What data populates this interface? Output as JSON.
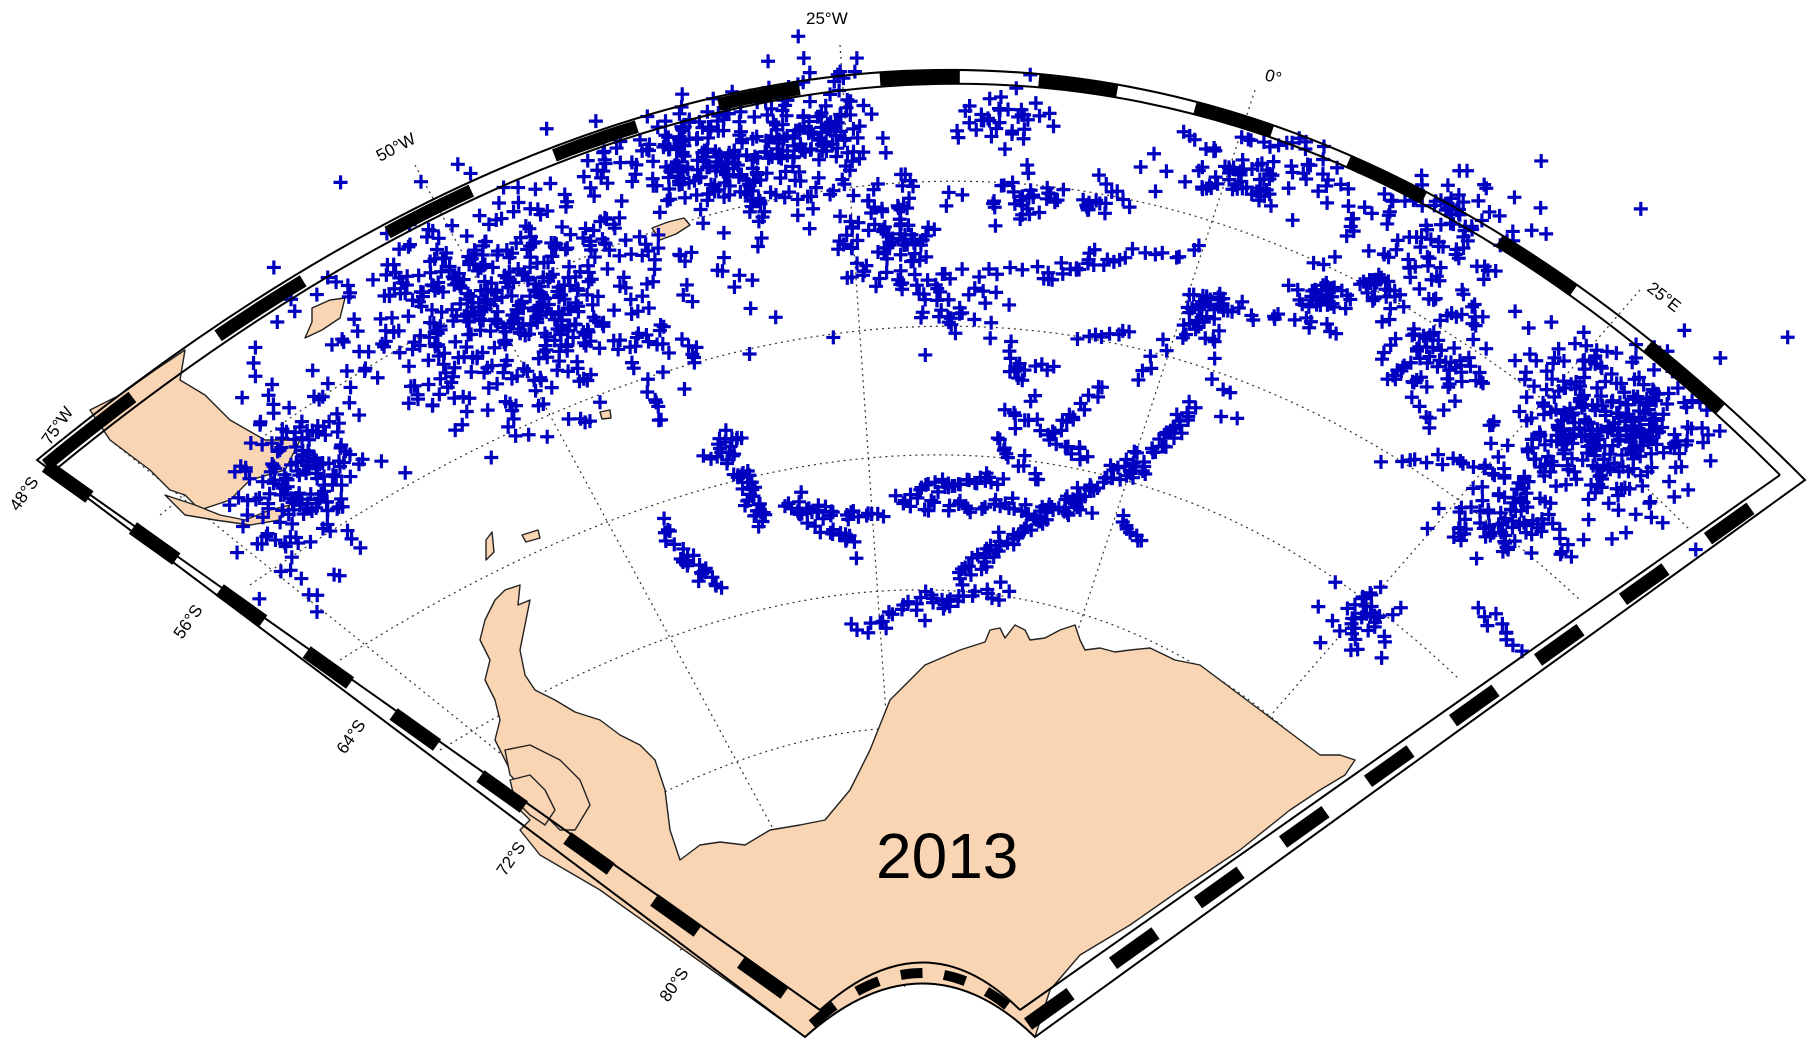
{
  "map": {
    "year_label": "2013",
    "projection": "polar stereographic sector (South Atlantic / Weddell Sea)",
    "longitude_range": [
      "75°W",
      "35°E"
    ],
    "latitude_range": [
      "48°S",
      "86°S"
    ],
    "longitude_labels": [
      "75°W",
      "50°W",
      "25°W",
      "0°",
      "25°E"
    ],
    "latitude_labels": [
      "48°S",
      "56°S",
      "64°S",
      "72°S",
      "80°S"
    ],
    "colors": {
      "land": "#f9d5b4",
      "observations": "#0000c0",
      "coastline": "#222222",
      "frame": "#000000"
    },
    "marker": "plus",
    "observation_regions": [
      "Drake Passage / Scotia Sea",
      "South Atlantic 45°W–20°W",
      "Weddell Sea interior",
      "Greenwich meridian / 0° transect",
      "20°E–35°E sector"
    ],
    "landmasses": [
      "South America",
      "Antarctic Peninsula",
      "Antarctica",
      "South Georgia",
      "South Orkney Islands"
    ]
  }
}
